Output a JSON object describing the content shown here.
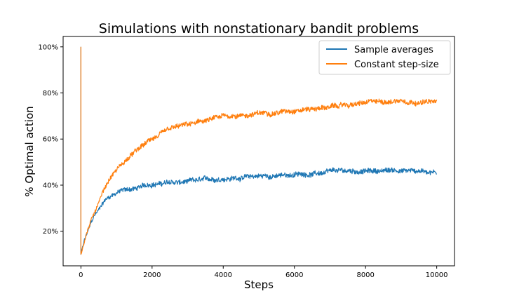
{
  "chart_data": {
    "type": "line",
    "title": "Simulations with nonstationary bandit problems",
    "xlabel": "Steps",
    "ylabel": "% Optimal action",
    "xlim": [
      -500,
      10500
    ],
    "ylim": [
      0.05,
      1.045
    ],
    "x_ticks": [
      0,
      2000,
      4000,
      6000,
      8000,
      10000
    ],
    "x_tick_labels": [
      "0",
      "2000",
      "4000",
      "6000",
      "8000",
      "10000"
    ],
    "y_ticks": [
      0.2,
      0.4,
      0.6,
      0.8,
      1.0
    ],
    "y_tick_labels": [
      "20%",
      "40%",
      "60%",
      "80%",
      "100%"
    ],
    "grid": false,
    "legend": "top-right",
    "series": [
      {
        "name": "Sample averages",
        "color": "#1f77b4",
        "x": [
          0,
          100,
          200,
          300,
          400,
          500,
          600,
          700,
          800,
          1000,
          1200,
          1500,
          1800,
          2000,
          2400,
          2800,
          3200,
          3600,
          4000,
          4600,
          5000,
          5600,
          6000,
          7000,
          8000,
          9000,
          10000
        ],
        "y": [
          0.1,
          0.16,
          0.2,
          0.24,
          0.27,
          0.29,
          0.32,
          0.34,
          0.35,
          0.37,
          0.38,
          0.385,
          0.395,
          0.405,
          0.41,
          0.41,
          0.415,
          0.42,
          0.43,
          0.435,
          0.44,
          0.44,
          0.445,
          0.455,
          0.46,
          0.465,
          0.46
        ]
      },
      {
        "name": "Constant step-size",
        "color": "#ff7f0e",
        "x": [
          0,
          100,
          200,
          300,
          400,
          500,
          600,
          700,
          800,
          1000,
          1200,
          1500,
          1800,
          2000,
          2400,
          2800,
          3200,
          3600,
          4000,
          4600,
          5000,
          5600,
          6000,
          7000,
          8000,
          9000,
          10000
        ],
        "y": [
          0.1,
          0.16,
          0.21,
          0.25,
          0.29,
          0.33,
          0.37,
          0.4,
          0.43,
          0.47,
          0.5,
          0.54,
          0.575,
          0.6,
          0.63,
          0.65,
          0.665,
          0.68,
          0.695,
          0.705,
          0.71,
          0.72,
          0.73,
          0.74,
          0.755,
          0.77,
          0.76
        ]
      }
    ],
    "initial_spike": {
      "x": 0,
      "y": 1.0
    }
  }
}
